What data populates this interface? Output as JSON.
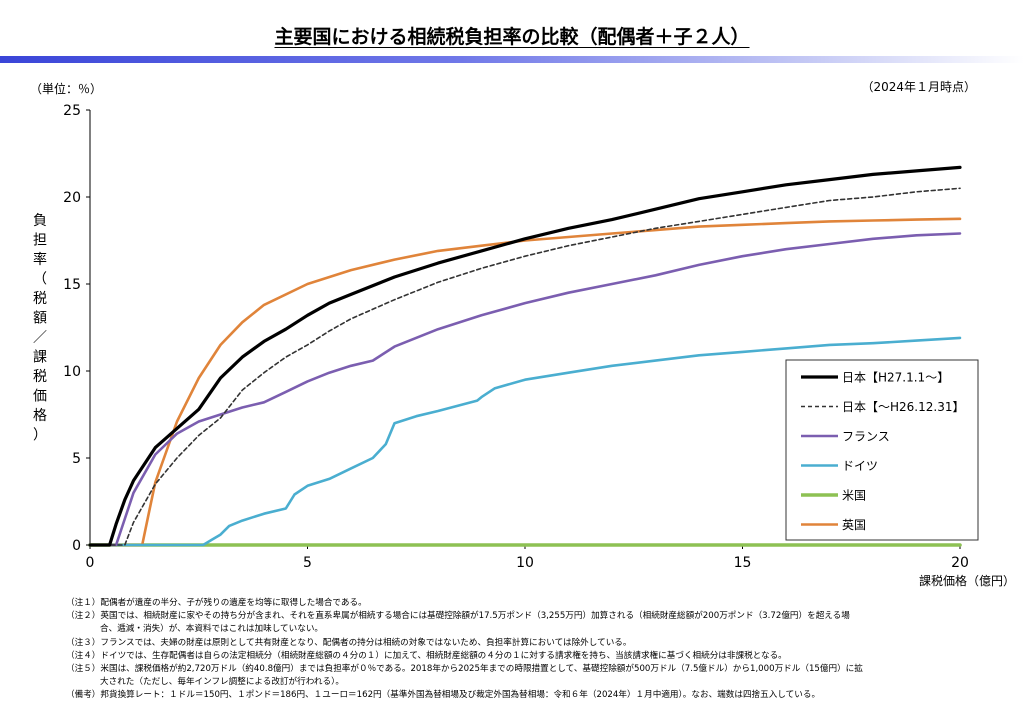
{
  "page": {
    "title": "主要国における相続税負担率の比較（配偶者＋子２人）",
    "unit_label": "（単位：％）",
    "as_of": "（2024年１月時点）",
    "x_axis_label": "課税価格（億円）",
    "y_axis_label_chars": [
      "負",
      "担",
      "率",
      "（",
      "税",
      "額",
      "／",
      "課",
      "税",
      "価",
      "格",
      "）"
    ],
    "accent_color": "#3a45d8"
  },
  "chart_data": {
    "type": "line",
    "title": "主要国における相続税負担率の比較（配偶者＋子２人）",
    "xlabel": "課税価格（億円）",
    "ylabel": "負担率（税額／課税価格）",
    "xlim": [
      0,
      20
    ],
    "ylim": [
      0,
      25
    ],
    "x_ticks": [
      0,
      5,
      10,
      15,
      20
    ],
    "y_ticks": [
      0,
      5,
      10,
      15,
      20,
      25
    ],
    "grid": false,
    "legend_position": "right",
    "series": [
      {
        "name": "日本【H27.1.1〜】",
        "color": "#000000",
        "width": 3.2,
        "dash": "",
        "points": [
          [
            0,
            0
          ],
          [
            0.45,
            0
          ],
          [
            0.6,
            1.2
          ],
          [
            0.8,
            2.6
          ],
          [
            1.0,
            3.7
          ],
          [
            1.5,
            5.6
          ],
          [
            2.0,
            6.7
          ],
          [
            2.5,
            7.8
          ],
          [
            3.0,
            9.6
          ],
          [
            3.5,
            10.8
          ],
          [
            4.0,
            11.7
          ],
          [
            4.5,
            12.4
          ],
          [
            5.0,
            13.2
          ],
          [
            5.5,
            13.9
          ],
          [
            6.0,
            14.4
          ],
          [
            7.0,
            15.4
          ],
          [
            8.0,
            16.2
          ],
          [
            9.0,
            16.9
          ],
          [
            10.0,
            17.6
          ],
          [
            11.0,
            18.2
          ],
          [
            12.0,
            18.7
          ],
          [
            13.0,
            19.3
          ],
          [
            14.0,
            19.9
          ],
          [
            15.0,
            20.3
          ],
          [
            16.0,
            20.7
          ],
          [
            17.0,
            21.0
          ],
          [
            18.0,
            21.3
          ],
          [
            19.0,
            21.5
          ],
          [
            20.0,
            21.7
          ]
        ]
      },
      {
        "name": "日本【〜H26.12.31】",
        "color": "#333333",
        "width": 1.6,
        "dash": "4,3",
        "points": [
          [
            0,
            0
          ],
          [
            0.8,
            0
          ],
          [
            1.0,
            1.3
          ],
          [
            1.5,
            3.5
          ],
          [
            2.0,
            5.0
          ],
          [
            2.5,
            6.3
          ],
          [
            3.0,
            7.3
          ],
          [
            3.5,
            8.9
          ],
          [
            4.0,
            9.9
          ],
          [
            4.5,
            10.8
          ],
          [
            5.0,
            11.5
          ],
          [
            5.5,
            12.3
          ],
          [
            6.0,
            13.0
          ],
          [
            7.0,
            14.1
          ],
          [
            8.0,
            15.1
          ],
          [
            9.0,
            15.9
          ],
          [
            10.0,
            16.6
          ],
          [
            11.0,
            17.2
          ],
          [
            12.0,
            17.7
          ],
          [
            13.0,
            18.2
          ],
          [
            14.0,
            18.6
          ],
          [
            15.0,
            19.0
          ],
          [
            16.0,
            19.4
          ],
          [
            17.0,
            19.8
          ],
          [
            18.0,
            20.0
          ],
          [
            19.0,
            20.3
          ],
          [
            20.0,
            20.5
          ]
        ]
      },
      {
        "name": "フランス",
        "color": "#7b5eb0",
        "width": 2.6,
        "dash": "",
        "points": [
          [
            0,
            0
          ],
          [
            0.6,
            0
          ],
          [
            0.8,
            1.5
          ],
          [
            1.0,
            3.0
          ],
          [
            1.5,
            5.2
          ],
          [
            2.0,
            6.4
          ],
          [
            2.5,
            7.1
          ],
          [
            3.0,
            7.5
          ],
          [
            3.5,
            7.9
          ],
          [
            4.0,
            8.2
          ],
          [
            4.5,
            8.8
          ],
          [
            5.0,
            9.4
          ],
          [
            5.5,
            9.9
          ],
          [
            6.0,
            10.3
          ],
          [
            6.5,
            10.6
          ],
          [
            7.0,
            11.4
          ],
          [
            8.0,
            12.4
          ],
          [
            9.0,
            13.2
          ],
          [
            10.0,
            13.9
          ],
          [
            11.0,
            14.5
          ],
          [
            12.0,
            15.0
          ],
          [
            13.0,
            15.5
          ],
          [
            14.0,
            16.1
          ],
          [
            15.0,
            16.6
          ],
          [
            16.0,
            17.0
          ],
          [
            17.0,
            17.3
          ],
          [
            18.0,
            17.6
          ],
          [
            19.0,
            17.8
          ],
          [
            20.0,
            17.9
          ]
        ]
      },
      {
        "name": "ドイツ",
        "color": "#4aaed0",
        "width": 2.6,
        "dash": "",
        "points": [
          [
            0,
            0
          ],
          [
            2.6,
            0
          ],
          [
            2.8,
            0.3
          ],
          [
            3.0,
            0.6
          ],
          [
            3.2,
            1.1
          ],
          [
            3.5,
            1.4
          ],
          [
            4.0,
            1.8
          ],
          [
            4.5,
            2.1
          ],
          [
            4.7,
            2.9
          ],
          [
            5.0,
            3.4
          ],
          [
            5.5,
            3.8
          ],
          [
            6.0,
            4.4
          ],
          [
            6.5,
            5.0
          ],
          [
            6.8,
            5.8
          ],
          [
            7.0,
            7.0
          ],
          [
            7.5,
            7.4
          ],
          [
            8.0,
            7.7
          ],
          [
            8.9,
            8.3
          ],
          [
            9.0,
            8.5
          ],
          [
            9.3,
            9.0
          ],
          [
            10.0,
            9.5
          ],
          [
            11.0,
            9.9
          ],
          [
            12.0,
            10.3
          ],
          [
            13.0,
            10.6
          ],
          [
            14.0,
            10.9
          ],
          [
            15.0,
            11.1
          ],
          [
            16.0,
            11.3
          ],
          [
            17.0,
            11.5
          ],
          [
            18.0,
            11.6
          ],
          [
            19.0,
            11.75
          ],
          [
            20.0,
            11.9
          ]
        ]
      },
      {
        "name": "米国",
        "color": "#8dc153",
        "width": 3.6,
        "dash": "",
        "points": [
          [
            0,
            0
          ],
          [
            20.0,
            0
          ]
        ]
      },
      {
        "name": "英国",
        "color": "#e0843a",
        "width": 2.6,
        "dash": "",
        "points": [
          [
            0,
            0
          ],
          [
            1.2,
            0
          ],
          [
            1.35,
            1.8
          ],
          [
            1.5,
            3.6
          ],
          [
            2.0,
            7.1
          ],
          [
            2.5,
            9.6
          ],
          [
            3.0,
            11.5
          ],
          [
            3.5,
            12.8
          ],
          [
            4.0,
            13.8
          ],
          [
            5.0,
            15.0
          ],
          [
            6.0,
            15.8
          ],
          [
            7.0,
            16.4
          ],
          [
            8.0,
            16.9
          ],
          [
            9.0,
            17.2
          ],
          [
            10.0,
            17.5
          ],
          [
            11.0,
            17.7
          ],
          [
            12.0,
            17.9
          ],
          [
            13.0,
            18.1
          ],
          [
            14.0,
            18.3
          ],
          [
            15.0,
            18.4
          ],
          [
            16.0,
            18.5
          ],
          [
            17.0,
            18.6
          ],
          [
            18.0,
            18.65
          ],
          [
            19.0,
            18.7
          ],
          [
            20.0,
            18.75
          ]
        ]
      }
    ]
  },
  "notes": [
    {
      "label": "（注１）",
      "text": "配偶者が遺産の半分、子が残りの遺産を均等に取得した場合である。"
    },
    {
      "label": "（注２）",
      "text": "英国では、相続財産に家やその持ち分が含まれ、それを直系卑属が相続する場合には基礎控除額が17.5万ポンド（3,255万円）加算される（相続財産総額が200万ポンド（3.72億円）を超える場",
      "cont": "合、逓減・消失）が、本資料ではこれは加味していない。"
    },
    {
      "label": "（注３）",
      "text": "フランスでは、夫婦の財産は原則として共有財産となり、配偶者の持分は相続の対象ではないため、負担率計算においては除外している。"
    },
    {
      "label": "（注４）",
      "text": "ドイツでは、生存配偶者は自らの法定相続分（相続財産総額の４分の１）に加えて、相続財産総額の４分の１に対する請求権を持ち、当該請求権に基づく相続分は非課税となる。"
    },
    {
      "label": "（注５）",
      "text": "米国は、課税価格が約2,720万ドル（約40.8億円）までは負担率が０％である。2018年から2025年までの時限措置として、基礎控除額が500万ドル（7.5億ドル）から1,000万ドル（15億円）に拡",
      "cont": "大された（ただし、毎年インフレ調整による改訂が行われる）。"
    },
    {
      "label": "（備考）",
      "text": "邦貨換算レート：１ドル＝150円、１ポンド＝186円、１ユーロ＝162円（基準外国為替相場及び裁定外国為替相場：令和６年（2024年）１月中適用）。なお、端数は四捨五入している。"
    }
  ]
}
